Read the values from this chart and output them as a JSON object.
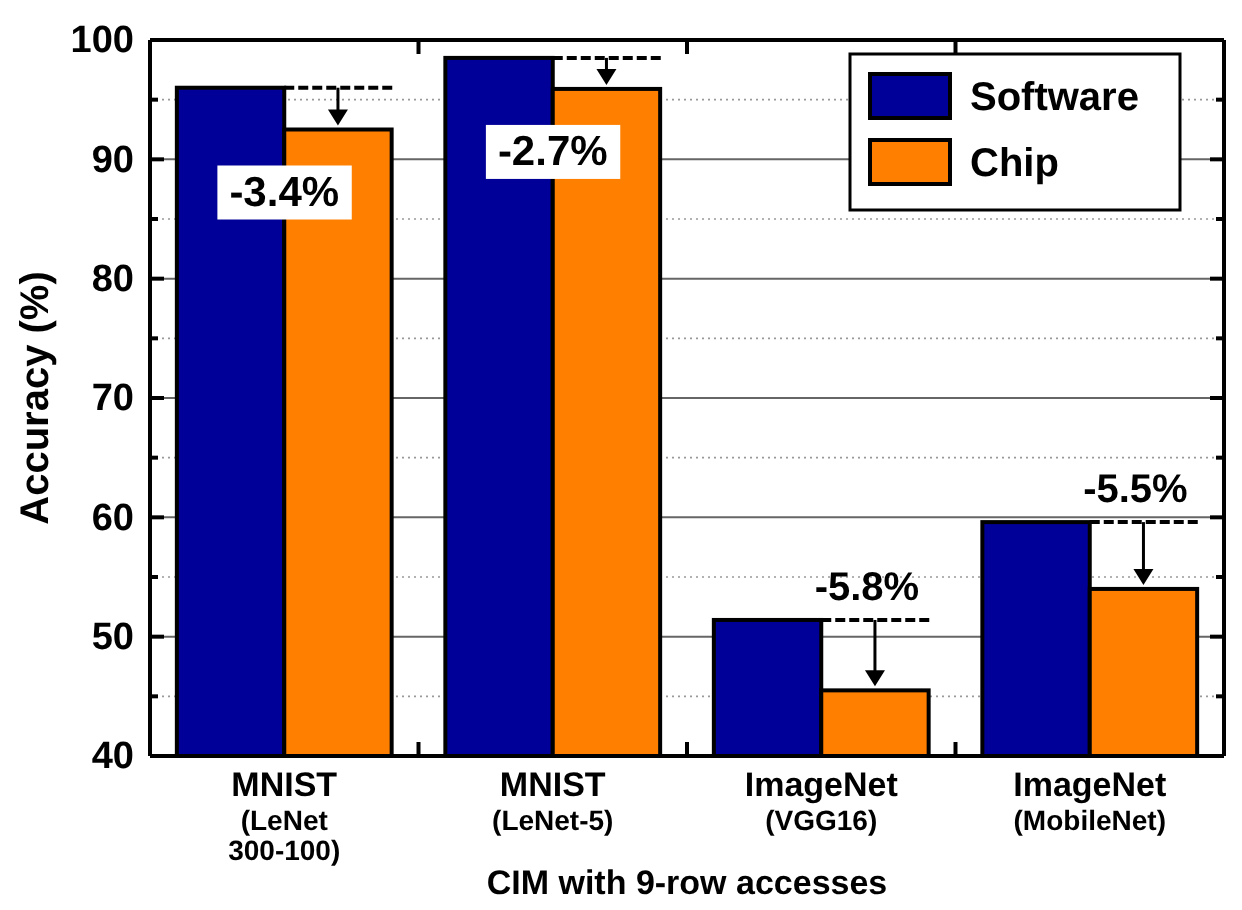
{
  "chart_data": {
    "type": "bar",
    "ylabel": "Accuracy (%)",
    "xlabel": "CIM with 9-row accesses",
    "categories": [
      "MNIST\n(LeNet\n300-100)",
      "MNIST\n(LeNet-5)",
      "ImageNet\n(VGG16)",
      "ImageNet\n(MobileNet)"
    ],
    "series": [
      {
        "name": "Software",
        "color": "#000099",
        "values": [
          96.0,
          98.5,
          51.4,
          59.6
        ]
      },
      {
        "name": "Chip",
        "color": "#ff8000",
        "values": [
          92.5,
          95.9,
          45.5,
          54.0
        ]
      }
    ],
    "ylim": [
      40,
      100
    ],
    "yticks": [
      40,
      {
        "value": 45,
        "label": null
      },
      50,
      {
        "value": 55,
        "label": null
      },
      60,
      {
        "value": 65,
        "label": null
      },
      70,
      {
        "value": 75,
        "label": null
      },
      80,
      {
        "value": 85,
        "label": null
      },
      90,
      {
        "value": 95,
        "label": null
      },
      100
    ],
    "grid": true,
    "legend": "top right",
    "annotations": [
      {
        "text": "-3.4%",
        "x": "MNIST\n(LeNet\n300-100)",
        "y": 96.0
      },
      {
        "text": "-2.7%",
        "x": "MNIST\n(LeNet-5)",
        "y": 98.5
      },
      {
        "text": "-5.8%",
        "x": "ImageNet\n(VGG16)",
        "y": 51.4
      },
      {
        "text": "-5.5%",
        "x": "ImageNet\n(MobileNet)",
        "y": 59.6
      }
    ]
  }
}
